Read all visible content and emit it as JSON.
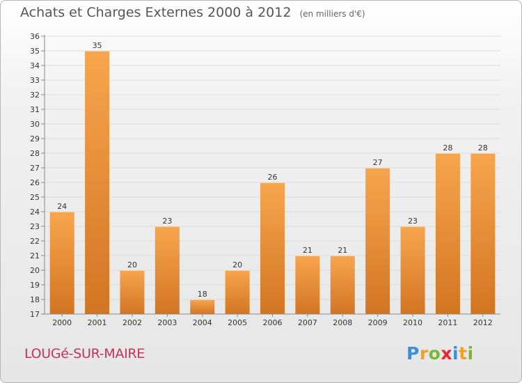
{
  "header": {
    "title": "Achats et Charges Externes 2000 à 2012",
    "subtitle": "(en milliers d'€)"
  },
  "commune": "LOUGé-SUR-MAIRE",
  "logo": {
    "text": "Proxiti",
    "letters": [
      {
        "ch": "P",
        "color": "#3a8fd6"
      },
      {
        "ch": "r",
        "color": "#f2a020"
      },
      {
        "ch": "o",
        "color": "#79b832"
      },
      {
        "ch": "x",
        "color": "#e8262c"
      },
      {
        "ch": "i",
        "color": "#3a8fd6"
      },
      {
        "ch": "t",
        "color": "#f2a020"
      },
      {
        "ch": "i",
        "color": "#79b832"
      }
    ]
  },
  "colors": {
    "bar_light": "#f7a54e",
    "bar_dark": "#d27522",
    "grid": "#dcdcdc",
    "axis": "#888888"
  },
  "chart_data": {
    "type": "bar",
    "categories": [
      "2000",
      "2001",
      "2002",
      "2003",
      "2004",
      "2005",
      "2006",
      "2007",
      "2008",
      "2009",
      "2010",
      "2011",
      "2012"
    ],
    "values": [
      24,
      35,
      20,
      23,
      18,
      20,
      26,
      21,
      21,
      27,
      23,
      28,
      28
    ],
    "title": "Achats et Charges Externes 2000 à 2012",
    "subtitle": "(en milliers d'€)",
    "xlabel": "",
    "ylabel": "",
    "ylim": [
      17,
      36
    ],
    "yticks": [
      17,
      18,
      19,
      20,
      21,
      22,
      23,
      24,
      25,
      26,
      27,
      28,
      29,
      30,
      31,
      32,
      33,
      34,
      35,
      36
    ],
    "grid": true,
    "data_labels": true
  }
}
